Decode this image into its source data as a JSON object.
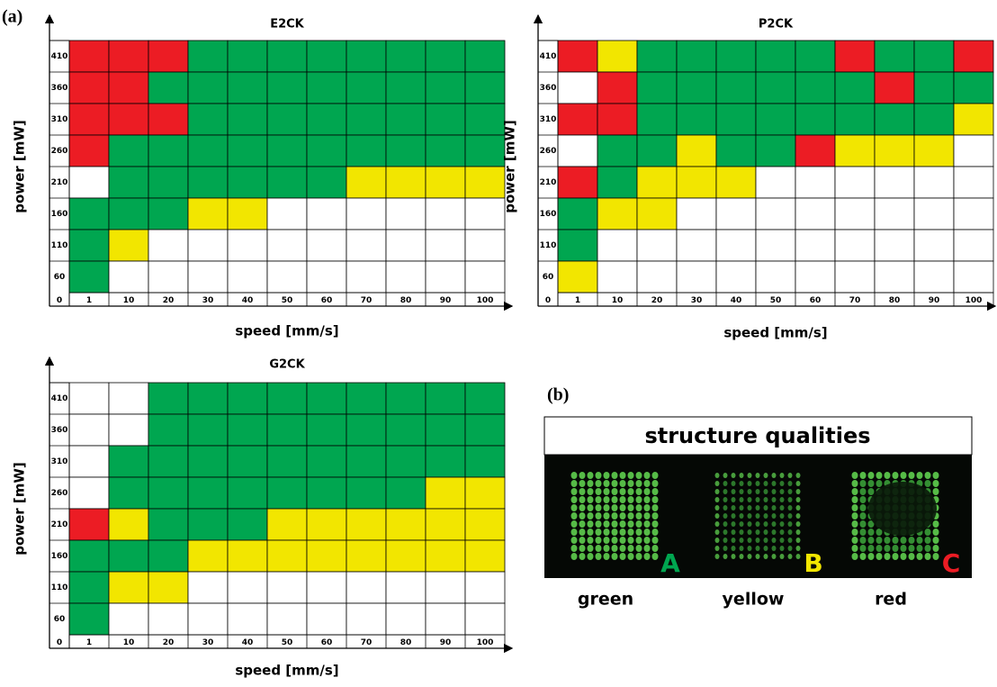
{
  "panel_labels": [
    "(a)",
    "(b)"
  ],
  "qualities": [
    {
      "name": "green",
      "letter": "A",
      "color": "#00a650"
    },
    {
      "name": "yellow",
      "letter": "B",
      "color": "#f2e600"
    },
    {
      "name": "red",
      "letter": "C",
      "color": "#ec1c24"
    }
  ],
  "photo_title": "structure qualities",
  "chart_data": [
    {
      "type": "heatmap",
      "title": "E2CK",
      "xlabel": "speed [mm/s]",
      "ylabel": "power [mW]",
      "corner_label": "0",
      "x_categories": [
        "1",
        "10",
        "20",
        "30",
        "40",
        "50",
        "60",
        "70",
        "80",
        "90",
        "100"
      ],
      "y_categories": [
        "410",
        "360",
        "310",
        "260",
        "210",
        "160",
        "110",
        "60"
      ],
      "cells": [
        [
          2,
          2,
          2,
          0,
          0,
          0,
          0,
          0,
          0,
          0,
          0
        ],
        [
          2,
          2,
          0,
          0,
          0,
          0,
          0,
          0,
          0,
          0,
          0
        ],
        [
          2,
          2,
          2,
          0,
          0,
          0,
          0,
          0,
          0,
          0,
          0
        ],
        [
          2,
          0,
          0,
          0,
          0,
          0,
          0,
          0,
          0,
          0,
          0
        ],
        [
          null,
          0,
          0,
          0,
          0,
          0,
          0,
          1,
          1,
          1,
          1
        ],
        [
          0,
          0,
          0,
          1,
          1,
          null,
          null,
          null,
          null,
          null,
          null
        ],
        [
          0,
          1,
          null,
          null,
          null,
          null,
          null,
          null,
          null,
          null,
          null
        ],
        [
          0,
          null,
          null,
          null,
          null,
          null,
          null,
          null,
          null,
          null,
          null
        ]
      ]
    },
    {
      "type": "heatmap",
      "title": "P2CK",
      "xlabel": "speed [mm/s]",
      "ylabel": "power [mW]",
      "corner_label": "0",
      "x_categories": [
        "1",
        "10",
        "20",
        "30",
        "40",
        "50",
        "60",
        "70",
        "80",
        "90",
        "100"
      ],
      "y_categories": [
        "410",
        "360",
        "310",
        "260",
        "210",
        "160",
        "110",
        "60"
      ],
      "cells": [
        [
          2,
          1,
          0,
          0,
          0,
          0,
          0,
          2,
          0,
          0,
          2
        ],
        [
          null,
          2,
          0,
          0,
          0,
          0,
          0,
          0,
          2,
          0,
          0
        ],
        [
          2,
          2,
          0,
          0,
          0,
          0,
          0,
          0,
          0,
          0,
          1
        ],
        [
          null,
          0,
          0,
          1,
          0,
          0,
          2,
          1,
          1,
          1,
          null
        ],
        [
          2,
          0,
          1,
          1,
          1,
          null,
          null,
          null,
          null,
          null,
          null
        ],
        [
          0,
          1,
          1,
          null,
          null,
          null,
          null,
          null,
          null,
          null,
          null
        ],
        [
          0,
          null,
          null,
          null,
          null,
          null,
          null,
          null,
          null,
          null,
          null
        ],
        [
          1,
          null,
          null,
          null,
          null,
          null,
          null,
          null,
          null,
          null,
          null
        ]
      ]
    },
    {
      "type": "heatmap",
      "title": "G2CK",
      "xlabel": "speed [mm/s]",
      "ylabel": "power [mW]",
      "corner_label": "0",
      "x_categories": [
        "1",
        "10",
        "20",
        "30",
        "40",
        "50",
        "60",
        "70",
        "80",
        "90",
        "100"
      ],
      "y_categories": [
        "410",
        "360",
        "310",
        "260",
        "210",
        "160",
        "110",
        "60"
      ],
      "cells": [
        [
          null,
          null,
          0,
          0,
          0,
          0,
          0,
          0,
          0,
          0,
          0
        ],
        [
          null,
          null,
          0,
          0,
          0,
          0,
          0,
          0,
          0,
          0,
          0
        ],
        [
          null,
          0,
          0,
          0,
          0,
          0,
          0,
          0,
          0,
          0,
          0
        ],
        [
          null,
          0,
          0,
          0,
          0,
          0,
          0,
          0,
          0,
          1,
          1
        ],
        [
          2,
          1,
          0,
          0,
          0,
          1,
          1,
          1,
          1,
          1,
          1
        ],
        [
          0,
          0,
          0,
          1,
          1,
          1,
          1,
          1,
          1,
          1,
          1
        ],
        [
          0,
          1,
          1,
          null,
          null,
          null,
          null,
          null,
          null,
          null,
          null
        ],
        [
          0,
          null,
          null,
          null,
          null,
          null,
          null,
          null,
          null,
          null,
          null
        ]
      ]
    }
  ]
}
